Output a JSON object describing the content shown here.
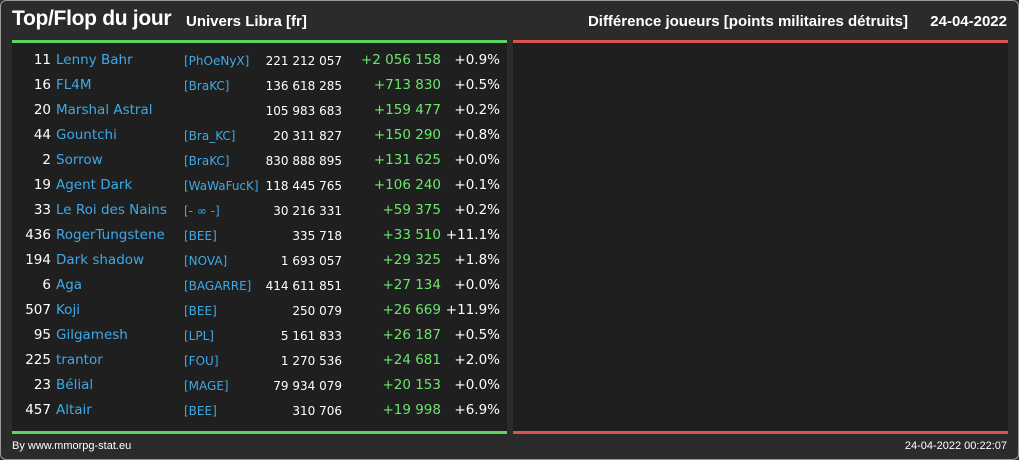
{
  "header": {
    "title": "Top/Flop du jour",
    "univers": "Univers Libra [fr]",
    "subtitle": "Différence joueurs [points militaires détruits]",
    "date": "24-04-2022"
  },
  "footer": {
    "credit": "By www.mmorpg-stat.eu",
    "timestamp": "24-04-2022 00:22:07"
  },
  "colors": {
    "accent_green": "#5fd35f",
    "accent_red": "#d9534f",
    "link_blue": "#3fa9e8",
    "gain_green": "#6ee36e"
  },
  "rows": [
    {
      "rank": "11",
      "name": "Lenny Bahr",
      "alliance": "[PhOeNyX]",
      "points": "221 212 057",
      "diff": "+2 056 158",
      "pct": "+0.9%"
    },
    {
      "rank": "16",
      "name": "FL4M",
      "alliance": "[BraKC]",
      "points": "136 618 285",
      "diff": "+713 830",
      "pct": "+0.5%"
    },
    {
      "rank": "20",
      "name": "Marshal Astral",
      "alliance": "",
      "points": "105 983 683",
      "diff": "+159 477",
      "pct": "+0.2%"
    },
    {
      "rank": "44",
      "name": "Gountchi",
      "alliance": "[Bra_KC]",
      "points": "20 311 827",
      "diff": "+150 290",
      "pct": "+0.8%"
    },
    {
      "rank": "2",
      "name": "Sorrow",
      "alliance": "[BraKC]",
      "points": "830 888 895",
      "diff": "+131 625",
      "pct": "+0.0%"
    },
    {
      "rank": "19",
      "name": "Agent Dark",
      "alliance": "[WaWaFucK]",
      "points": "118 445 765",
      "diff": "+106 240",
      "pct": "+0.1%"
    },
    {
      "rank": "33",
      "name": "Le Roi des Nains",
      "alliance": "[- ∞ -]",
      "points": "30 216 331",
      "diff": "+59 375",
      "pct": "+0.2%"
    },
    {
      "rank": "436",
      "name": "RogerTungstene",
      "alliance": "[BEE]",
      "points": "335 718",
      "diff": "+33 510",
      "pct": "+11.1%"
    },
    {
      "rank": "194",
      "name": "Dark shadow",
      "alliance": "[NOVA]",
      "points": "1 693 057",
      "diff": "+29 325",
      "pct": "+1.8%"
    },
    {
      "rank": "6",
      "name": "Aga",
      "alliance": "[BAGARRE]",
      "points": "414 611 851",
      "diff": "+27 134",
      "pct": "+0.0%"
    },
    {
      "rank": "507",
      "name": "Koji",
      "alliance": "[BEE]",
      "points": "250 079",
      "diff": "+26 669",
      "pct": "+11.9%"
    },
    {
      "rank": "95",
      "name": "Gilgamesh",
      "alliance": "[LPL]",
      "points": "5 161 833",
      "diff": "+26 187",
      "pct": "+0.5%"
    },
    {
      "rank": "225",
      "name": "trantor",
      "alliance": "[FOU]",
      "points": "1 270 536",
      "diff": "+24 681",
      "pct": "+2.0%"
    },
    {
      "rank": "23",
      "name": "Bélial",
      "alliance": "[MAGE]",
      "points": "79 934 079",
      "diff": "+20 153",
      "pct": "+0.0%"
    },
    {
      "rank": "457",
      "name": "Altair",
      "alliance": "[BEE]",
      "points": "310 706",
      "diff": "+19 998",
      "pct": "+6.9%"
    }
  ]
}
